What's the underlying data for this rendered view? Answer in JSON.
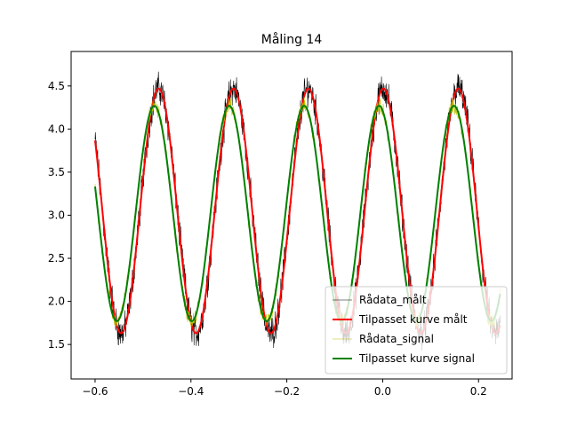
{
  "chart_data": {
    "type": "line",
    "title": "Måling 14",
    "xlabel": "",
    "ylabel": "",
    "xlim": [
      -0.65,
      0.27
    ],
    "ylim": [
      1.1,
      4.9
    ],
    "x_ticks": [
      -0.6,
      -0.4,
      -0.2,
      0.0,
      0.2
    ],
    "x_tick_labels": [
      "−0.6",
      "−0.4",
      "−0.2",
      "0.0",
      "0.2"
    ],
    "y_ticks": [
      1.5,
      2.0,
      2.5,
      3.0,
      3.5,
      4.0,
      4.5
    ],
    "y_tick_labels": [
      "1.5",
      "2.0",
      "2.5",
      "3.0",
      "3.5",
      "4.0",
      "4.5"
    ],
    "grid": false,
    "legend_position": "lower-right",
    "x_range": [
      -0.6,
      0.245
    ],
    "series": [
      {
        "name": "Rådata_målt",
        "kind": "raw",
        "color": "#000000",
        "linewidth": 0.6,
        "offset": 3.05,
        "amplitude": 1.42,
        "period": 0.1563,
        "phase_x": -0.4675,
        "noise": 0.28
      },
      {
        "name": "Tilpasset kurve målt",
        "kind": "fit",
        "color": "#ff0000",
        "linewidth": 2,
        "offset": 3.05,
        "amplitude": 1.42,
        "period": 0.1563,
        "phase_x": -0.4675
      },
      {
        "name": "Rådata_signal",
        "kind": "raw",
        "color": "#bfbf00",
        "linewidth": 0.6,
        "offset": 3.02,
        "amplitude": 1.25,
        "period": 0.1563,
        "phase_x": -0.4765,
        "noise": 0.13
      },
      {
        "name": "Tilpasset kurve signal",
        "kind": "fit",
        "color": "#008000",
        "linewidth": 2,
        "offset": 3.02,
        "amplitude": 1.25,
        "period": 0.1563,
        "phase_x": -0.4765
      }
    ]
  }
}
